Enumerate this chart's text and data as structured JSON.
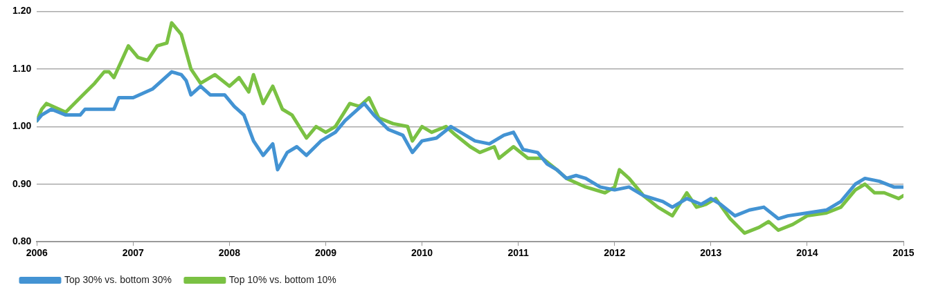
{
  "chart_data": {
    "type": "line",
    "xlim": [
      2006,
      2015
    ],
    "xticks": [
      2006,
      2007,
      2008,
      2009,
      2010,
      2011,
      2012,
      2013,
      2014,
      2015
    ],
    "ylim": [
      0.8,
      1.2
    ],
    "yticks": [
      {
        "value": 0.8,
        "label": "0.80"
      },
      {
        "value": 0.9,
        "label": "0.90"
      },
      {
        "value": 1.0,
        "label": "1.00"
      },
      {
        "value": 1.1,
        "label": "1.10"
      },
      {
        "value": 1.2,
        "label": "1.20"
      }
    ],
    "grid": "y",
    "legend": "bottom",
    "marker": "none",
    "line_style": "solid",
    "series": [
      {
        "name": "Top 30% vs. bottom 30%",
        "color": "#4393d3",
        "x": [
          2006.0,
          2006.05,
          2006.15,
          2006.3,
          2006.45,
          2006.5,
          2006.7,
          2006.8,
          2006.85,
          2007.0,
          2007.2,
          2007.3,
          2007.4,
          2007.5,
          2007.55,
          2007.6,
          2007.7,
          2007.8,
          2007.95,
          2008.05,
          2008.15,
          2008.25,
          2008.35,
          2008.45,
          2008.5,
          2008.6,
          2008.7,
          2008.8,
          2008.95,
          2009.1,
          2009.2,
          2009.3,
          2009.4,
          2009.5,
          2009.65,
          2009.8,
          2009.9,
          2010.0,
          2010.15,
          2010.3,
          2010.4,
          2010.55,
          2010.7,
          2010.85,
          2010.95,
          2011.05,
          2011.2,
          2011.3,
          2011.4,
          2011.5,
          2011.6,
          2011.7,
          2011.85,
          2012.0,
          2012.15,
          2012.3,
          2012.5,
          2012.6,
          2012.75,
          2012.9,
          2013.0,
          2013.1,
          2013.25,
          2013.4,
          2013.55,
          2013.7,
          2013.8,
          2014.0,
          2014.2,
          2014.35,
          2014.5,
          2014.6,
          2014.75,
          2014.9,
          2015.0
        ],
        "values": [
          1.01,
          1.02,
          1.03,
          1.02,
          1.02,
          1.03,
          1.03,
          1.03,
          1.05,
          1.05,
          1.065,
          1.08,
          1.095,
          1.09,
          1.08,
          1.055,
          1.07,
          1.055,
          1.055,
          1.035,
          1.02,
          0.975,
          0.95,
          0.97,
          0.925,
          0.955,
          0.965,
          0.95,
          0.975,
          0.99,
          1.01,
          1.025,
          1.04,
          1.02,
          0.995,
          0.985,
          0.955,
          0.975,
          0.98,
          1.0,
          0.99,
          0.975,
          0.97,
          0.985,
          0.99,
          0.96,
          0.955,
          0.935,
          0.925,
          0.91,
          0.915,
          0.91,
          0.895,
          0.89,
          0.895,
          0.88,
          0.87,
          0.86,
          0.875,
          0.865,
          0.875,
          0.865,
          0.845,
          0.855,
          0.86,
          0.84,
          0.845,
          0.85,
          0.855,
          0.87,
          0.9,
          0.91,
          0.905,
          0.895,
          0.895
        ]
      },
      {
        "name": "Top 10% vs. bottom 10%",
        "color": "#7ac143",
        "x": [
          2006.0,
          2006.05,
          2006.1,
          2006.3,
          2006.45,
          2006.6,
          2006.7,
          2006.75,
          2006.8,
          2006.95,
          2007.05,
          2007.15,
          2007.25,
          2007.35,
          2007.4,
          2007.5,
          2007.6,
          2007.7,
          2007.85,
          2008.0,
          2008.1,
          2008.2,
          2008.25,
          2008.35,
          2008.45,
          2008.55,
          2008.65,
          2008.8,
          2008.9,
          2009.0,
          2009.1,
          2009.25,
          2009.35,
          2009.45,
          2009.55,
          2009.7,
          2009.85,
          2009.9,
          2010.0,
          2010.1,
          2010.25,
          2010.35,
          2010.5,
          2010.6,
          2010.75,
          2010.8,
          2010.95,
          2011.1,
          2011.25,
          2011.4,
          2011.5,
          2011.7,
          2011.9,
          2012.0,
          2012.05,
          2012.15,
          2012.3,
          2012.45,
          2012.6,
          2012.75,
          2012.85,
          2012.95,
          2013.05,
          2013.2,
          2013.35,
          2013.5,
          2013.6,
          2013.7,
          2013.85,
          2014.0,
          2014.2,
          2014.35,
          2014.5,
          2014.6,
          2014.7,
          2014.8,
          2014.95,
          2015.0
        ],
        "values": [
          1.01,
          1.03,
          1.04,
          1.025,
          1.05,
          1.075,
          1.095,
          1.095,
          1.085,
          1.14,
          1.12,
          1.115,
          1.14,
          1.145,
          1.18,
          1.16,
          1.1,
          1.075,
          1.09,
          1.07,
          1.085,
          1.06,
          1.09,
          1.04,
          1.07,
          1.03,
          1.02,
          0.98,
          1.0,
          0.99,
          1.0,
          1.04,
          1.035,
          1.05,
          1.015,
          1.005,
          1.0,
          0.975,
          1.0,
          0.99,
          1.0,
          0.985,
          0.965,
          0.955,
          0.965,
          0.945,
          0.965,
          0.945,
          0.945,
          0.925,
          0.91,
          0.895,
          0.885,
          0.895,
          0.925,
          0.91,
          0.88,
          0.86,
          0.845,
          0.885,
          0.86,
          0.865,
          0.875,
          0.84,
          0.815,
          0.825,
          0.835,
          0.82,
          0.83,
          0.845,
          0.85,
          0.86,
          0.89,
          0.9,
          0.885,
          0.885,
          0.875,
          0.88
        ]
      }
    ]
  }
}
